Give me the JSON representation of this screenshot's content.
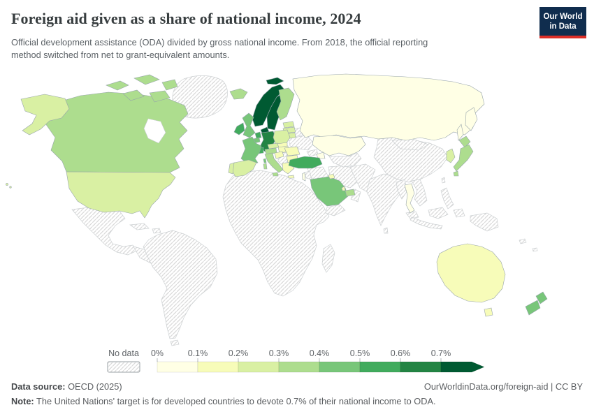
{
  "header": {
    "title": "Foreign aid given as a share of national income, 2024",
    "subtitle_lines": [
      "Official development assistance (ODA) divided by gross national income. From 2018, the official reporting",
      "method switched from net to grant-equivalent amounts."
    ],
    "logo": {
      "line1": "Our World",
      "line2": "in Data",
      "bg_color": "#102d4e",
      "stripe_color": "#dc2e27"
    }
  },
  "legend": {
    "no_data_label": "No data",
    "tick_labels": [
      "0%",
      "0.1%",
      "0.2%",
      "0.3%",
      "0.4%",
      "0.5%",
      "0.6%",
      "0.7%"
    ],
    "colors": [
      "#ffffe5",
      "#f7fcb9",
      "#d9f0a3",
      "#addd8e",
      "#78c679",
      "#41ab5d",
      "#238443",
      "#005a32"
    ]
  },
  "footer": {
    "source_label": "Data source:",
    "source_value": "OECD (2025)",
    "link": "OurWorldinData.org/foreign-aid | CC BY",
    "note_label": "Note:",
    "note_value": "The United Nations' target is for developed countries to devote 0.7% of their national income to ODA."
  },
  "chart_data": {
    "type": "heatmap",
    "subtype": "choropleth-world-map",
    "title": "Foreign aid given as a share of national income, 2024",
    "unit": "ODA as % of gross national income",
    "legend_position": "bottom",
    "bin_edges_percent": [
      0,
      0.1,
      0.2,
      0.3,
      0.4,
      0.5,
      0.6,
      0.7
    ],
    "open_ended_top_bin": "0.7%+",
    "band_colors": {
      "0-0.1%": "#ffffe5",
      "0.1-0.2%": "#f7fcb9",
      "0.2-0.3%": "#d9f0a3",
      "0.3-0.4%": "#addd8e",
      "0.4-0.5%": "#78c679",
      "0.5-0.6%": "#41ab5d",
      "0.6-0.7%": "#238443",
      "0.7%+": "#005a32"
    },
    "entities": [
      {
        "entity": "Norway",
        "band": "0.7%+"
      },
      {
        "entity": "Sweden",
        "band": "0.7%+"
      },
      {
        "entity": "Denmark",
        "band": "0.7%+"
      },
      {
        "entity": "Germany",
        "band": "0.6-0.7%"
      },
      {
        "entity": "Ireland",
        "band": "0.5-0.6%"
      },
      {
        "entity": "Netherlands",
        "band": "0.5-0.6%"
      },
      {
        "entity": "Switzerland",
        "band": "0.5-0.6%"
      },
      {
        "entity": "Turkey",
        "band": "0.5-0.6%"
      },
      {
        "entity": "France",
        "band": "0.4-0.5%"
      },
      {
        "entity": "United Kingdom",
        "band": "0.4-0.5%"
      },
      {
        "entity": "Belgium",
        "band": "0.4-0.5%"
      },
      {
        "entity": "Saudi Arabia",
        "band": "0.4-0.5%"
      },
      {
        "entity": "New Zealand",
        "band": "0.4-0.5%"
      },
      {
        "entity": "Canada",
        "band": "0.3-0.4%"
      },
      {
        "entity": "Finland",
        "band": "0.3-0.4%"
      },
      {
        "entity": "Iceland",
        "band": "0.3-0.4%"
      },
      {
        "entity": "Austria",
        "band": "0.3-0.4%"
      },
      {
        "entity": "Italy",
        "band": "0.3-0.4%"
      },
      {
        "entity": "Japan",
        "band": "0.3-0.4%"
      },
      {
        "entity": "United Arab Emirates",
        "band": "0.3-0.4%"
      },
      {
        "entity": "United States",
        "band": "0.2-0.3%"
      },
      {
        "entity": "Spain",
        "band": "0.2-0.3%"
      },
      {
        "entity": "Portugal",
        "band": "0.2-0.3%"
      },
      {
        "entity": "Poland",
        "band": "0.2-0.3%"
      },
      {
        "entity": "Czechia",
        "band": "0.2-0.3%"
      },
      {
        "entity": "South Korea",
        "band": "0.2-0.3%"
      },
      {
        "entity": "Estonia",
        "band": "0.2-0.3%"
      },
      {
        "entity": "Latvia",
        "band": "0.2-0.3%"
      },
      {
        "entity": "Lithuania",
        "band": "0.2-0.3%"
      },
      {
        "entity": "Australia",
        "band": "0.1-0.2%"
      },
      {
        "entity": "Hungary",
        "band": "0.1-0.2%"
      },
      {
        "entity": "Slovakia",
        "band": "0.1-0.2%"
      },
      {
        "entity": "Croatia",
        "band": "0.1-0.2%"
      },
      {
        "entity": "Romania",
        "band": "0.1-0.2%"
      },
      {
        "entity": "Bulgaria",
        "band": "0.1-0.2%"
      },
      {
        "entity": "Greece",
        "band": "0.1-0.2%"
      },
      {
        "entity": "Kuwait",
        "band": "0.1-0.2%"
      },
      {
        "entity": "Qatar",
        "band": "0.1-0.2%"
      },
      {
        "entity": "Russia",
        "band": "0-0.1%"
      },
      {
        "entity": "Kazakhstan",
        "band": "0-0.1%"
      },
      {
        "entity": "Azerbaijan",
        "band": "0-0.1%"
      },
      {
        "entity": "Israel",
        "band": "0-0.1%"
      },
      {
        "entity": "Thailand",
        "band": "0-0.1%"
      }
    ],
    "no_data_label": "No data",
    "no_data_regions": [
      "Greenland",
      "Mexico",
      "Central America",
      "Caribbean",
      "South America",
      "Africa",
      "Madagascar",
      "Ukraine",
      "Belarus",
      "Balkans",
      "Georgia and Armenia",
      "Syria and Iraq",
      "Jordan and Lebanon",
      "Iran",
      "Oman",
      "Yemen",
      "Central Asia",
      "Afghanistan and Pakistan",
      "India",
      "Sri Lanka",
      "China",
      "Mongolia",
      "Taiwan",
      "Myanmar",
      "Indochina",
      "Malaysia",
      "Indonesia",
      "Philippines",
      "New Guinea",
      "Pacific islands"
    ]
  }
}
